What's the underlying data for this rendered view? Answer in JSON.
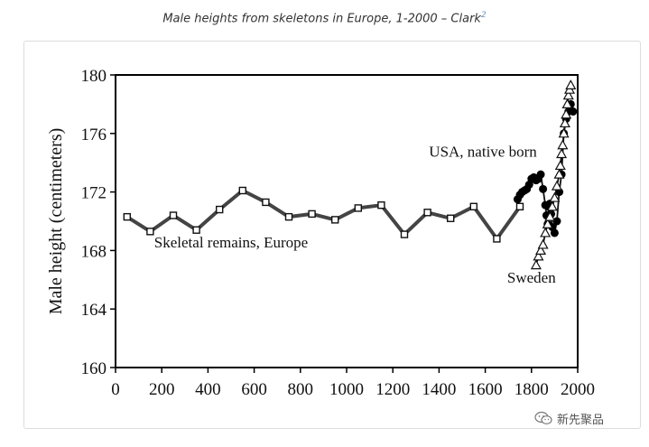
{
  "caption": {
    "text": "Male heights from skeletons in Europe, 1-2000 – Clark",
    "footnote": "2"
  },
  "watermark": {
    "text": "新先聚品",
    "icon": "wechat-icon"
  },
  "chart_data": {
    "type": "line",
    "title": "",
    "xlabel": "",
    "ylabel": "Male height (centimeters)",
    "xlim": [
      0,
      2000
    ],
    "ylim": [
      160,
      180
    ],
    "x_ticks": [
      0,
      200,
      400,
      600,
      800,
      1000,
      1200,
      1400,
      1600,
      1800,
      2000
    ],
    "y_ticks": [
      160,
      164,
      168,
      172,
      176,
      180
    ],
    "grid": false,
    "annotations": [
      {
        "text": "Skeletal remains, Europe",
        "x": 500,
        "y": 168.2
      },
      {
        "text": "USA, native born",
        "x": 1590,
        "y": 174.4
      },
      {
        "text": "Sweden",
        "x": 1800,
        "y": 165.8
      }
    ],
    "series": [
      {
        "label": "Skeletal remains, Europe",
        "marker": "square-open",
        "x": [
          50,
          150,
          250,
          350,
          450,
          550,
          650,
          750,
          850,
          950,
          1050,
          1150,
          1250,
          1350,
          1450,
          1550,
          1650,
          1750
        ],
        "y": [
          170.3,
          169.3,
          170.4,
          169.4,
          170.8,
          172.1,
          171.3,
          170.3,
          170.5,
          170.1,
          170.9,
          171.1,
          169.1,
          170.6,
          170.2,
          171.0,
          168.8,
          171.0
        ]
      },
      {
        "label": "USA, native born",
        "marker": "circle-filled",
        "x": [
          1740,
          1750,
          1760,
          1770,
          1780,
          1790,
          1800,
          1810,
          1820,
          1830,
          1840,
          1850,
          1860,
          1865,
          1870,
          1875,
          1880,
          1885,
          1890,
          1900,
          1910,
          1920,
          1930,
          1940,
          1950,
          1960,
          1970,
          1980
        ],
        "y": [
          171.5,
          171.8,
          172.0,
          172.1,
          172.2,
          172.5,
          172.9,
          173.0,
          172.8,
          172.9,
          173.2,
          172.2,
          171.1,
          170.4,
          169.8,
          171.0,
          171.2,
          170.5,
          169.6,
          169.2,
          170.0,
          172.0,
          173.2,
          176.0,
          177.0,
          177.5,
          178.0,
          177.5
        ]
      },
      {
        "label": "Sweden",
        "marker": "triangle-open",
        "x": [
          1820,
          1830,
          1840,
          1850,
          1860,
          1870,
          1880,
          1890,
          1900,
          1910,
          1920,
          1925,
          1930,
          1935,
          1940,
          1945,
          1950,
          1955,
          1960,
          1965,
          1970
        ],
        "y": [
          167.0,
          167.6,
          168.0,
          168.4,
          169.2,
          169.8,
          170.3,
          171.0,
          171.6,
          172.4,
          173.2,
          173.8,
          174.6,
          175.2,
          176.0,
          176.7,
          177.3,
          178.0,
          178.6,
          179.0,
          179.3
        ]
      }
    ]
  }
}
